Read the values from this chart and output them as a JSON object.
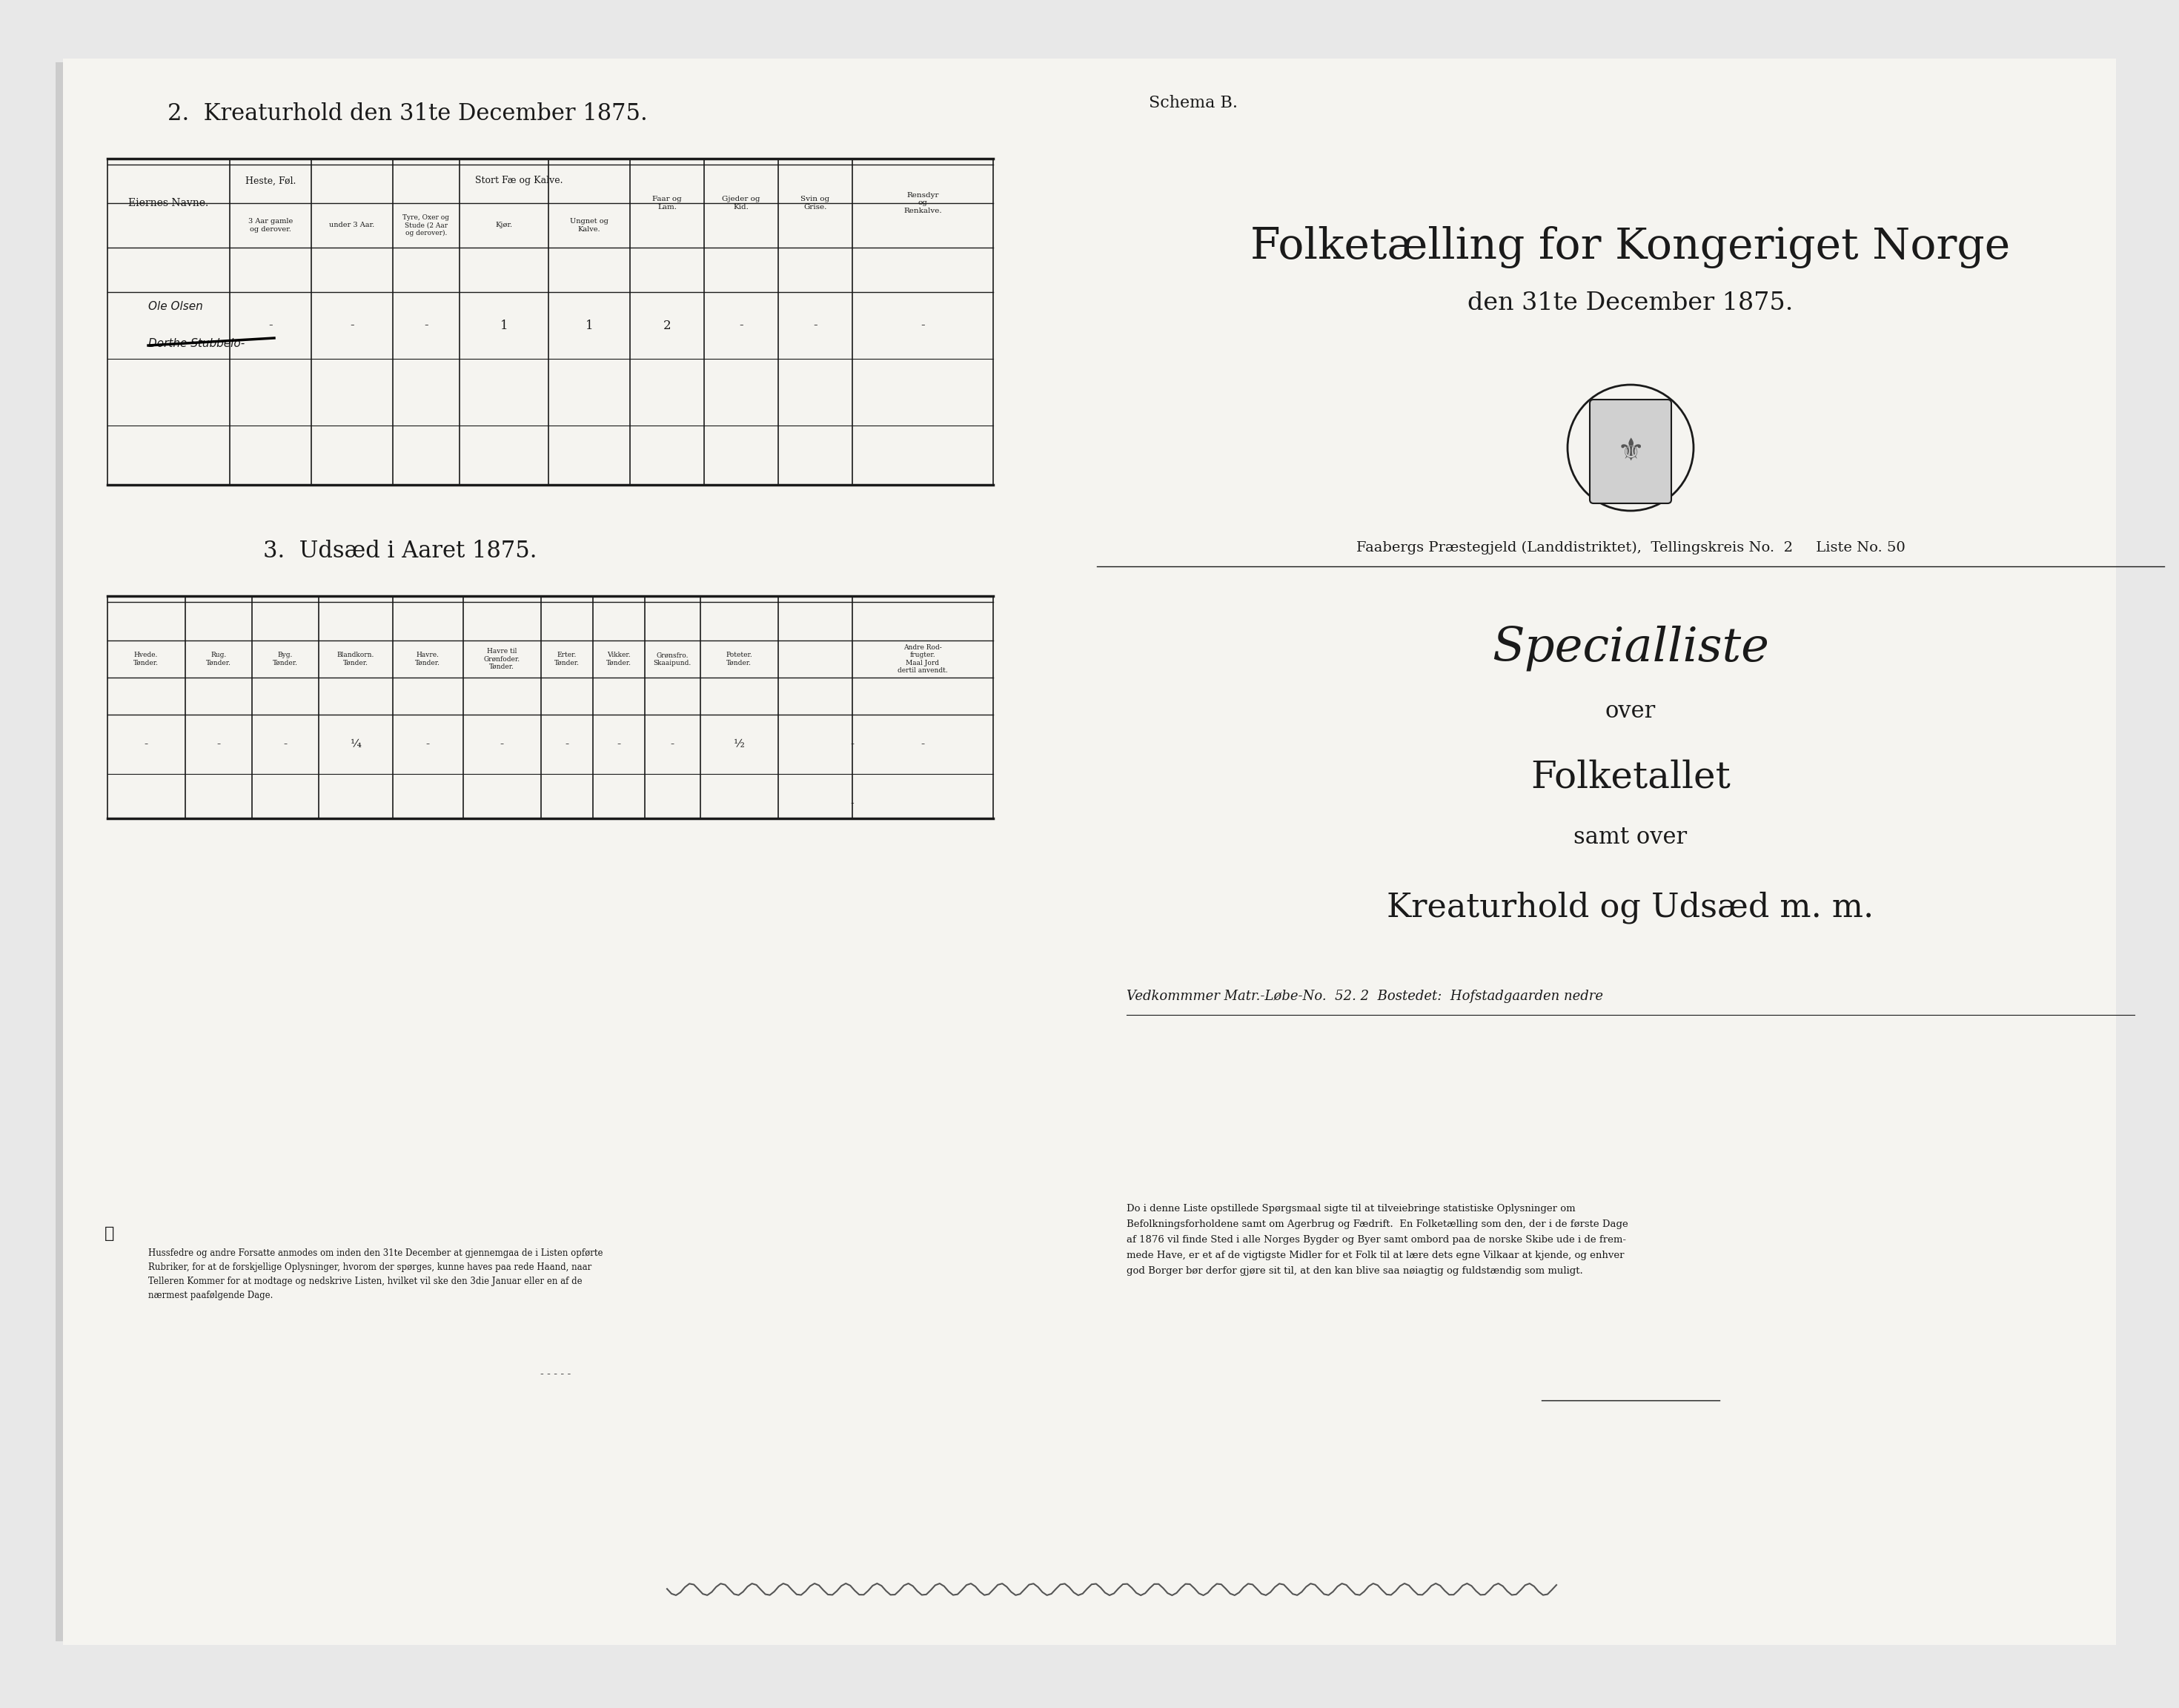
{
  "bg_color": "#e8e8e8",
  "paper_color": "#f5f4f0",
  "paper_left_color": "#f0efe9",
  "ink_color": "#1a1a1a",
  "title_left": "2.  Kreaturhold den 31te December 1875.",
  "title_section3": "3.  Udsæd i Aaret 1875.",
  "schema_b": "Schema B.",
  "main_title_line1": "Folketælling for Kongeriget Norge",
  "main_title_line2": "den 31te December 1875.",
  "subtitle1": "Specialliste",
  "subtitle2": "over",
  "subtitle3": "Folketallet",
  "subtitle4": "samt over",
  "subtitle5": "Kreaturhold og Udsæd m. m.",
  "matr_line": "Vedkommmer Matr.-Løbe-No.  52. 2  Bostedet:  Hofstadgaarden nedre",
  "faaberg_line": "Faabergs Præstegjeld (Landdistriktet),  Tellingskreis No.  2     Liste No. 50",
  "paragraph_text": "Do i denne Liste opstillede Spørgsmaal sigte til at tilveiebringe statistiske Oplysninger om\nBefolkningsforholdene samt om Agerbrug og Fædrift.  En Folketælling som den, der i de første Dage\naf 1876 vil finde Sted i alle Norges Bygder og Byer samt ombord paa de norske Skibe ude i de frem-\nmede Have, er et af de vigtigste Midler for et Folk til at lære dets egne Vilkaar at kjende, og enhver\ngod Borger bør derfor gjøre sit til, at den kan blive saa nøiagtig og fuldstændig som muligt.",
  "left_footer_text": "Hussfedre og andre Forsatte anmodes om inden den 31te December at gjennemgaa de i Listen opførte\nRubriker, for at de forskjellige Oplysninger, hvorom der spørges, kunne haves paa rede Haand, naar\nTelleren Kommer for at modtage og nedskrive Listen, hvilket vil ske den 3die Januar eller en af de\nnærmest paafølgende Dage."
}
